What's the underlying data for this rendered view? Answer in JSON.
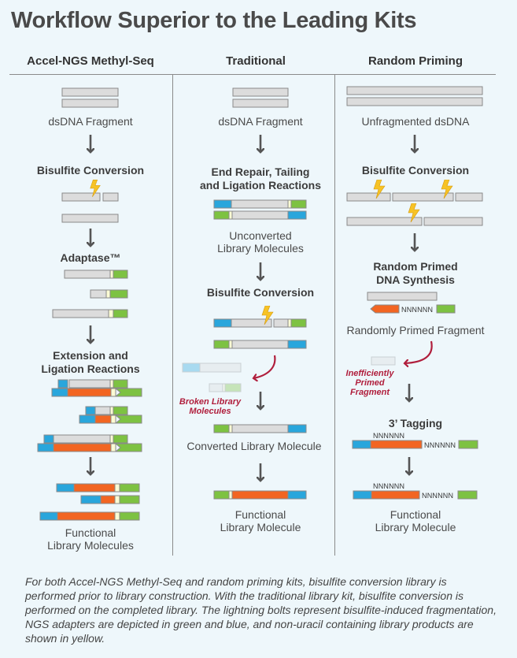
{
  "title": "Workflow Superior to the Leading Kits",
  "columns": {
    "accel": {
      "header": "Accel-NGS Methyl-Seq",
      "fragment": "dsDNA Fragment",
      "bisulfite": "Bisulfite Conversion",
      "adaptase": "Adaptase™",
      "extension_1": "Extension and",
      "extension_2": "Ligation Reactions",
      "result_1": "Functional",
      "result_2": "Library Molecules"
    },
    "traditional": {
      "header": "Traditional",
      "fragment": "dsDNA Fragment",
      "end_repair_1": "End Repair, Tailing",
      "end_repair_2": "and Ligation Reactions",
      "unconverted_1": "Unconverted",
      "unconverted_2": "Library Molecules",
      "bisulfite": "Bisulfite Conversion",
      "broken_1": "Broken Library",
      "broken_2": "Molecules",
      "converted": "Converted Library Molecule",
      "result_1": "Functional",
      "result_2": "Library Molecule"
    },
    "random": {
      "header": "Random Priming",
      "fragment": "Unfragmented dsDNA",
      "bisulfite": "Bisulfite Conversion",
      "synthesis_1": "Random Primed",
      "synthesis_2": "DNA Synthesis",
      "nnnnnn": "NNNNNN",
      "primed": "Randomly Primed Fragment",
      "inefficient_1": "Inefficiently",
      "inefficient_2": "Primed",
      "inefficient_3": "Fragment",
      "tagging": "3’ Tagging",
      "result_1": "Functional",
      "result_2": "Library Molecule"
    }
  },
  "caption": "For both Accel-NGS Methyl-Seq and random priming kits, bisulfite conversion library is performed prior to library construction. With the traditional library kit, bisulfite conversion is performed on the completed library. The lightning bolts represent bisulfite-induced fragmentation, NGS adapters are depicted in green and blue, and non-uracil containing library products are shown in yellow.",
  "colors": {
    "dna": "#dcdcdc",
    "dna_stroke": "#8a8a8a",
    "blue_adapter": "#29a6dc",
    "green_adapter": "#7dc242",
    "orange_product": "#f26522",
    "yellow_core": "#fbfbd4",
    "bolt": "#f7c325",
    "arrow": "#555555",
    "red_arrow": "#b01e3c"
  }
}
